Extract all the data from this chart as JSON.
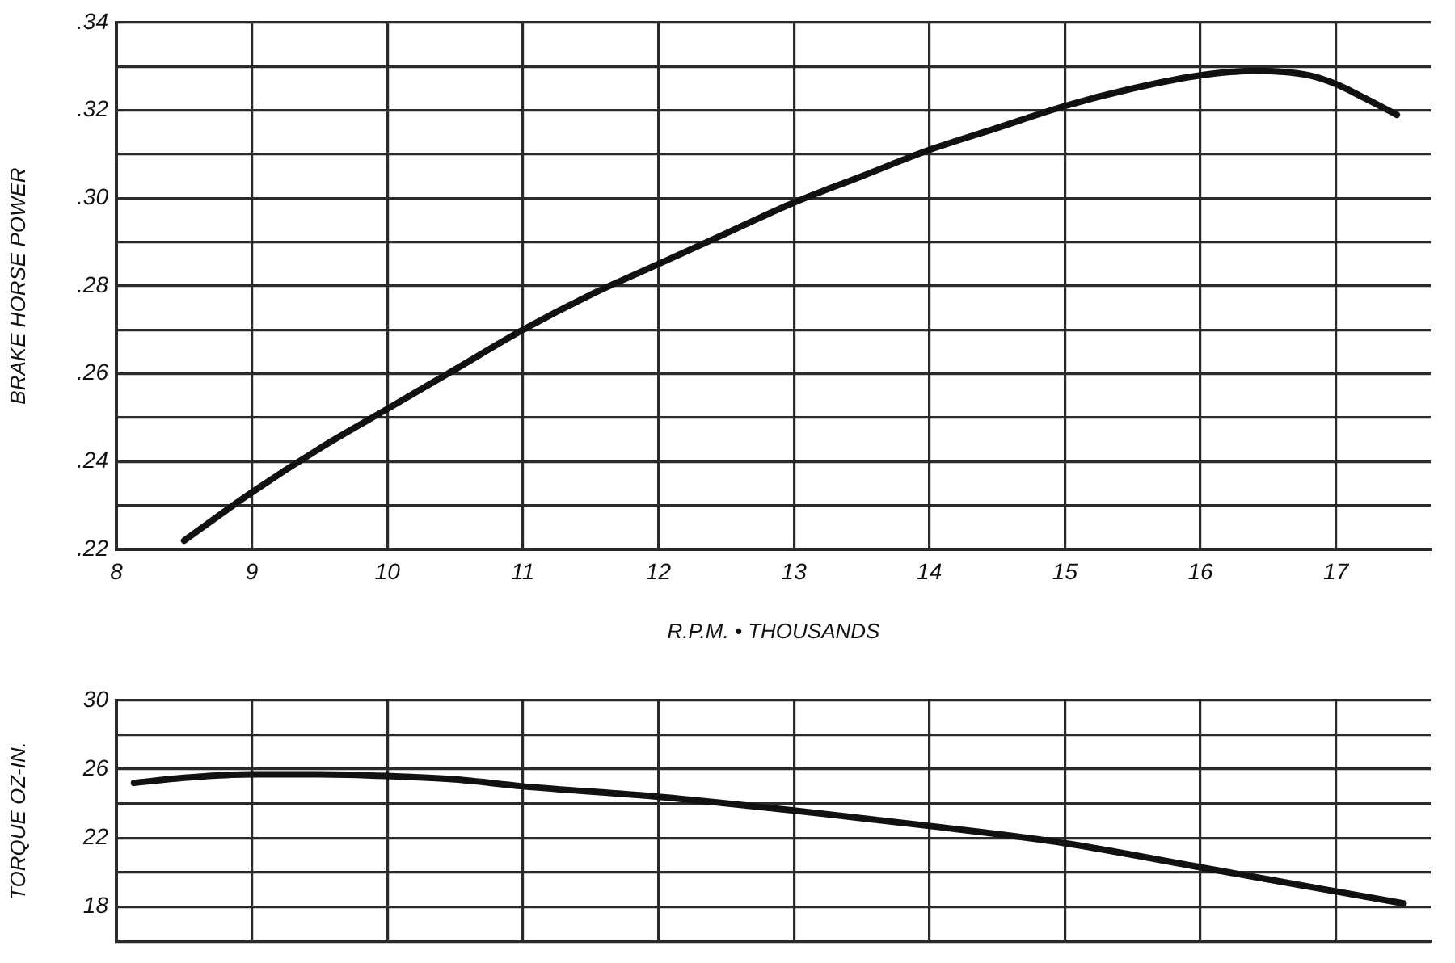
{
  "chart_data": [
    {
      "type": "line",
      "xlabel": "R.P.M. • THOUSANDS",
      "ylabel": "BRAKE HORSE POWER",
      "series": [
        {
          "color": "#111111",
          "x": [
            8.5,
            9,
            9.5,
            10,
            10.5,
            11,
            11.5,
            12,
            12.5,
            13,
            13.5,
            14,
            14.5,
            15,
            15.5,
            16,
            16.4,
            16.8,
            17,
            17.2,
            17.45
          ],
          "values": [
            0.222,
            0.233,
            0.243,
            0.252,
            0.261,
            0.27,
            0.278,
            0.285,
            0.292,
            0.299,
            0.305,
            0.311,
            0.316,
            0.321,
            0.325,
            0.328,
            0.329,
            0.328,
            0.326,
            0.323,
            0.319
          ]
        }
      ],
      "xlim": [
        8,
        17.7
      ],
      "xticks": [
        8,
        9,
        10,
        11,
        12,
        13,
        14,
        15,
        16,
        17
      ],
      "ylim": [
        0.22,
        0.34
      ],
      "yticks": [
        {
          "value": 0.22,
          "label": ".22"
        },
        {
          "value": 0.23,
          "label": null
        },
        {
          "value": 0.24,
          "label": ".24"
        },
        {
          "value": 0.25,
          "label": null
        },
        {
          "value": 0.26,
          "label": ".26"
        },
        {
          "value": 0.27,
          "label": null
        },
        {
          "value": 0.28,
          "label": ".28"
        },
        {
          "value": 0.29,
          "label": null
        },
        {
          "value": 0.3,
          "label": ".30"
        },
        {
          "value": 0.31,
          "label": null
        },
        {
          "value": 0.32,
          "label": ".32"
        },
        {
          "value": 0.33,
          "label": null
        },
        {
          "value": 0.34,
          "label": ".34"
        }
      ],
      "grid": true
    },
    {
      "type": "line",
      "ylabel": "TORQUE OZ-IN.",
      "series": [
        {
          "color": "#111111",
          "x": [
            8.13,
            8.5,
            9,
            9.5,
            10,
            10.5,
            11,
            12,
            13,
            14,
            15,
            16,
            16.5,
            17,
            17.5
          ],
          "values": [
            25.2,
            25.5,
            25.7,
            25.7,
            25.6,
            25.4,
            25.0,
            24.4,
            23.6,
            22.7,
            21.7,
            20.3,
            19.6,
            18.9,
            18.2
          ]
        }
      ],
      "xlim": [
        8,
        17.7
      ],
      "xticks": [
        8,
        9,
        10,
        11,
        12,
        13,
        14,
        15,
        16,
        17
      ],
      "ylim": [
        16,
        30
      ],
      "yticks": [
        {
          "value": 16,
          "label": null
        },
        18,
        {
          "value": 20,
          "label": null
        },
        22,
        {
          "value": 24,
          "label": null
        },
        26,
        {
          "value": 28,
          "label": null
        },
        30
      ],
      "grid": true,
      "tick_labels": "y"
    }
  ]
}
